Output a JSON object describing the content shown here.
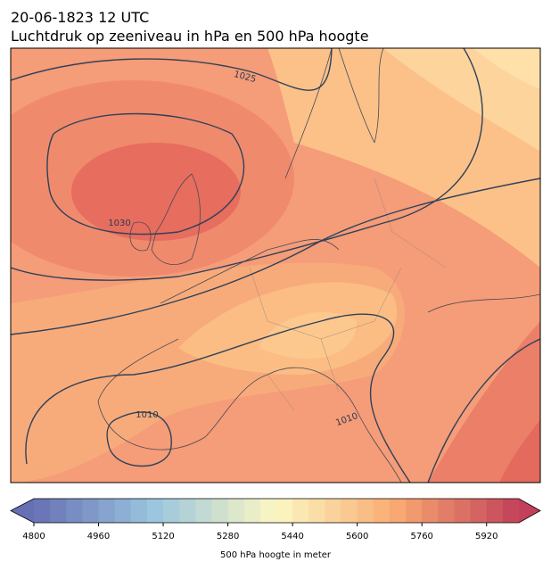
{
  "title": "20-06-1823 12 UTC",
  "subtitle": "Luchtdruk op zeeniveau in hPa en 500 hPa hoogte",
  "contour_labels": [
    1025,
    1030,
    1010,
    1010
  ],
  "colorbar": {
    "label": "500 hPa hoogte in meter",
    "lim": [
      4800,
      6000
    ],
    "ticks": [
      4800,
      4960,
      5120,
      5280,
      5440,
      5600,
      5760,
      5920
    ],
    "bins": 30,
    "colors": [
      "#6670b4",
      "#9bc6de",
      "#fcf7c2",
      "#f8a870",
      "#c2405a"
    ]
  }
}
